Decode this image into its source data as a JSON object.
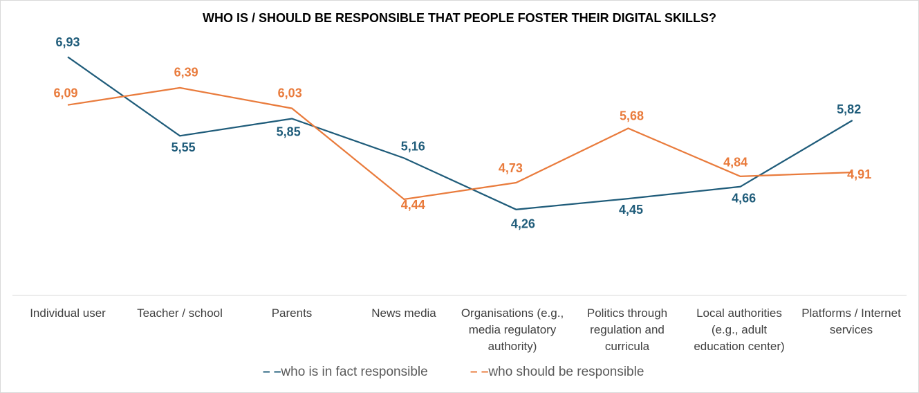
{
  "chart_data": {
    "type": "line",
    "title": "WHO IS / SHOULD BE RESPONSIBLE THAT PEOPLE FOSTER THEIR DIGITAL SKILLS?",
    "categories": [
      "Individual user",
      "Teacher / school",
      "Parents",
      "News media",
      "Organisations (e.g., media regulatory authority)",
      "Politics through regulation and curricula",
      "Local authorities (e.g., adult education center)",
      "Platforms / Internet services"
    ],
    "series": [
      {
        "name": "who is in fact responsible",
        "color": "#1f5c7a",
        "values": [
          6.93,
          5.55,
          5.85,
          5.16,
          4.26,
          4.45,
          4.66,
          5.82
        ],
        "labels": [
          "6,93",
          "5,55",
          "5,85",
          "5,16",
          "4,26",
          "4,45",
          "4,66",
          "5,82"
        ]
      },
      {
        "name": "who should be responsible",
        "color": "#e97b3c",
        "values": [
          6.09,
          6.39,
          6.03,
          4.44,
          4.73,
          5.68,
          4.84,
          4.91
        ],
        "labels": [
          "6,09",
          "6,39",
          "6,03",
          "4,44",
          "4,73",
          "5,68",
          "4,84",
          "4,91"
        ]
      }
    ],
    "legend_position": "bottom",
    "grid": false,
    "xlabel": "",
    "ylabel": ""
  },
  "legend": {
    "fact_marker": "– –",
    "should_marker": "– –",
    "fact_label": "who is in fact responsible",
    "should_label": "who should be responsible"
  }
}
